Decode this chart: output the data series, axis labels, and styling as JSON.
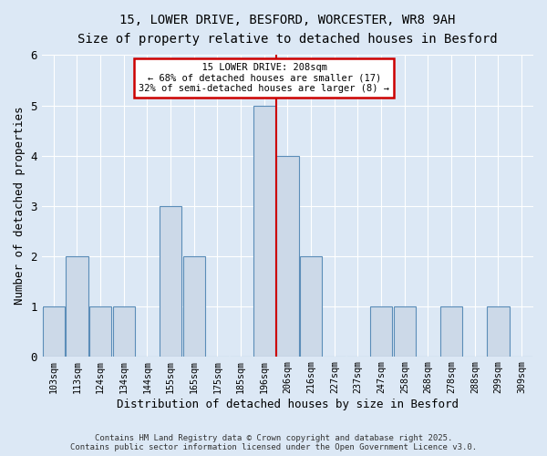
{
  "title_line1": "15, LOWER DRIVE, BESFORD, WORCESTER, WR8 9AH",
  "title_line2": "Size of property relative to detached houses in Besford",
  "xlabel": "Distribution of detached houses by size in Besford",
  "ylabel": "Number of detached properties",
  "categories": [
    "103sqm",
    "113sqm",
    "124sqm",
    "134sqm",
    "144sqm",
    "155sqm",
    "165sqm",
    "175sqm",
    "185sqm",
    "196sqm",
    "206sqm",
    "216sqm",
    "227sqm",
    "237sqm",
    "247sqm",
    "258sqm",
    "268sqm",
    "278sqm",
    "288sqm",
    "299sqm",
    "309sqm"
  ],
  "values": [
    1,
    2,
    1,
    1,
    0,
    3,
    2,
    0,
    0,
    5,
    4,
    2,
    0,
    0,
    1,
    1,
    0,
    1,
    0,
    1,
    0
  ],
  "bar_color": "#ccd9e8",
  "bar_edge_color": "#5b8db8",
  "reference_line_label": "15 LOWER DRIVE: 208sqm",
  "pct_smaller": "68% of detached houses are smaller (17)",
  "pct_larger": "32% of semi-detached houses are larger (8)",
  "annotation_box_color": "#ffffff",
  "annotation_box_edge": "#cc0000",
  "ref_line_color": "#cc0000",
  "ref_line_x": 9.5,
  "ylim": [
    0,
    6
  ],
  "yticks": [
    0,
    1,
    2,
    3,
    4,
    5,
    6
  ],
  "footer": "Contains HM Land Registry data © Crown copyright and database right 2025.\nContains public sector information licensed under the Open Government Licence v3.0.",
  "bg_color": "#dce8f5"
}
